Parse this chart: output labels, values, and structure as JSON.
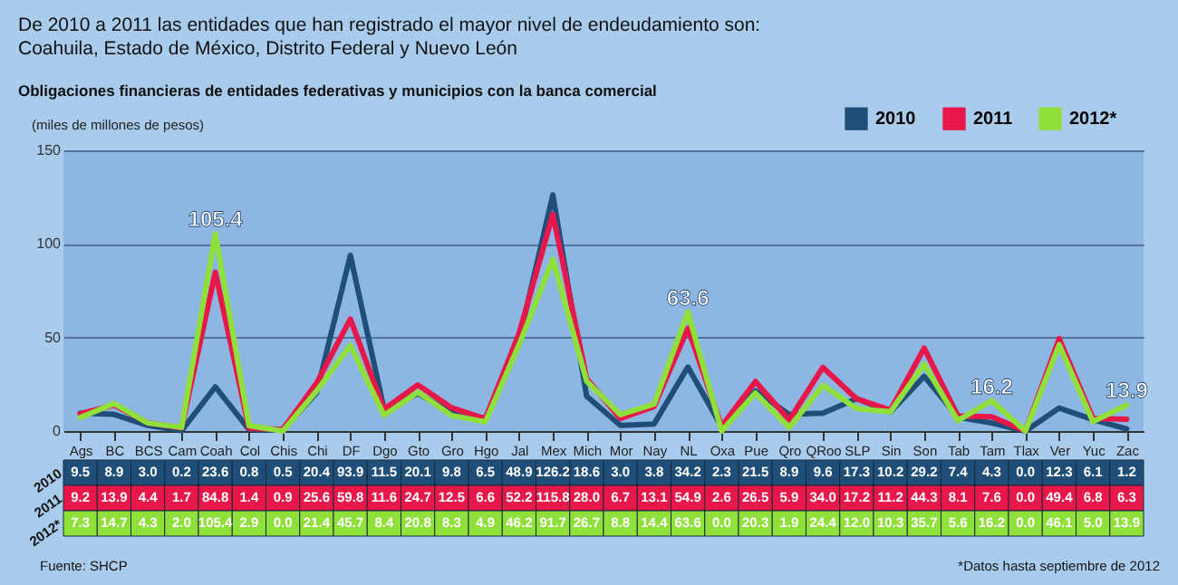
{
  "chart_data": {
    "type": "line",
    "title": "De 2010 a 2011 las entidades que han registrado el mayor nivel de endeudamiento son: Coahuila, Estado de México, Distrito Federal y Nuevo León",
    "subtitle": "Obligaciones financieras de entidades federativas y municipios con la banca comercial",
    "ylabel": "(miles de millones de pesos)",
    "categories": [
      "Ags",
      "BC",
      "BCS",
      "Cam",
      "Coah",
      "Col",
      "Chis",
      "Chi",
      "DF",
      "Dgo",
      "Gto",
      "Gro",
      "Hgo",
      "Jal",
      "Mex",
      "Mich",
      "Mor",
      "Nay",
      "NL",
      "Oxa",
      "Pue",
      "Qro",
      "QRoo",
      "SLP",
      "Sin",
      "Son",
      "Tab",
      "Tam",
      "Tlax",
      "Ver",
      "Yuc",
      "Zac"
    ],
    "series": [
      {
        "name": "2010",
        "color": "#1f4e79",
        "values": [
          9.5,
          8.9,
          3.0,
          0.2,
          23.6,
          0.8,
          0.5,
          20.4,
          93.9,
          11.5,
          20.1,
          9.8,
          6.5,
          48.9,
          126.2,
          18.6,
          3.0,
          3.8,
          34.2,
          2.3,
          21.5,
          8.9,
          9.6,
          17.3,
          10.2,
          29.2,
          7.4,
          4.3,
          0.0,
          12.3,
          6.1,
          1.2
        ],
        "value_labels": [
          "9.5",
          "8.9",
          "3.0",
          "0.2",
          "23.6",
          "0.8",
          "0.5",
          "20.4",
          "93.9",
          "11.5",
          "20.1",
          "9.8",
          "6.5",
          "48.9",
          "126.2",
          "18.6",
          "3.0",
          "3.8",
          "34.2",
          "2.3",
          "21.5",
          "8.9",
          "9.6",
          "17.3",
          "10.2",
          "29.2",
          "7.4",
          "4.3",
          "0.0",
          "12.3",
          "6.1",
          "1.2"
        ]
      },
      {
        "name": "2011",
        "color": "#e8174a",
        "values": [
          9.2,
          13.9,
          4.4,
          1.7,
          84.8,
          1.4,
          0.9,
          25.6,
          59.8,
          11.6,
          24.7,
          12.5,
          6.6,
          52.2,
          115.8,
          28.0,
          6.7,
          13.1,
          54.9,
          2.6,
          26.5,
          5.9,
          34.0,
          17.2,
          11.2,
          44.3,
          8.1,
          7.6,
          0.0,
          49.4,
          6.8,
          6.3
        ],
        "value_labels": [
          "9.2",
          "13.9",
          "4.4",
          "1.7",
          "84.8",
          "1.4",
          "0.9",
          "25.6",
          "59.8",
          "11.6",
          "24.7",
          "12.5",
          "6.6",
          "52.2",
          "115.8",
          "28.0",
          "6.7",
          "13.1",
          "54.9",
          "2.6",
          "26.5",
          "5.9",
          "34.0",
          "17.2",
          "11.2",
          "44.3",
          "8.1",
          "7.6",
          "0.0",
          "49.4",
          "6.8",
          "6.3"
        ]
      },
      {
        "name": "2012*",
        "color": "#8fe03a",
        "values": [
          7.3,
          14.7,
          4.3,
          2.0,
          105.4,
          2.9,
          0.0,
          21.4,
          45.7,
          8.4,
          20.8,
          8.3,
          4.9,
          46.2,
          91.7,
          26.7,
          8.8,
          14.4,
          63.6,
          0.0,
          20.3,
          1.9,
          24.4,
          12.0,
          10.3,
          35.7,
          5.6,
          16.2,
          0.0,
          46.1,
          5.0,
          13.9
        ],
        "value_labels": [
          "7.3",
          "14.7",
          "4.3",
          "2.0",
          "105.4",
          "2.9",
          "0.0",
          "21.4",
          "45.7",
          "8.4",
          "20.8",
          "8.3",
          "4.9",
          "46.2",
          "91.7",
          "26.7",
          "8.8",
          "14.4",
          "63.6",
          "0.0",
          "20.3",
          "1.9",
          "24.4",
          "12.0",
          "10.3",
          "35.7",
          "5.6",
          "16.2",
          "0.0",
          "46.1",
          "5.0",
          "13.9"
        ]
      }
    ],
    "ylim": [
      0,
      150
    ],
    "yticks": [
      0,
      50,
      100,
      150
    ],
    "grid": "y",
    "legend": "top right",
    "annotations": [
      {
        "text": "105.4",
        "x": "Coah",
        "y": 105.4
      },
      {
        "text": "63.6",
        "x": "NL",
        "y": 63.6
      },
      {
        "text": "16.2",
        "x": "Tam",
        "y": 16.2
      },
      {
        "text": "13.9",
        "x": "Zac",
        "y": 13.9
      },
      "Fuente: SHCP",
      "*Datos hasta septiembre de 2012"
    ]
  }
}
